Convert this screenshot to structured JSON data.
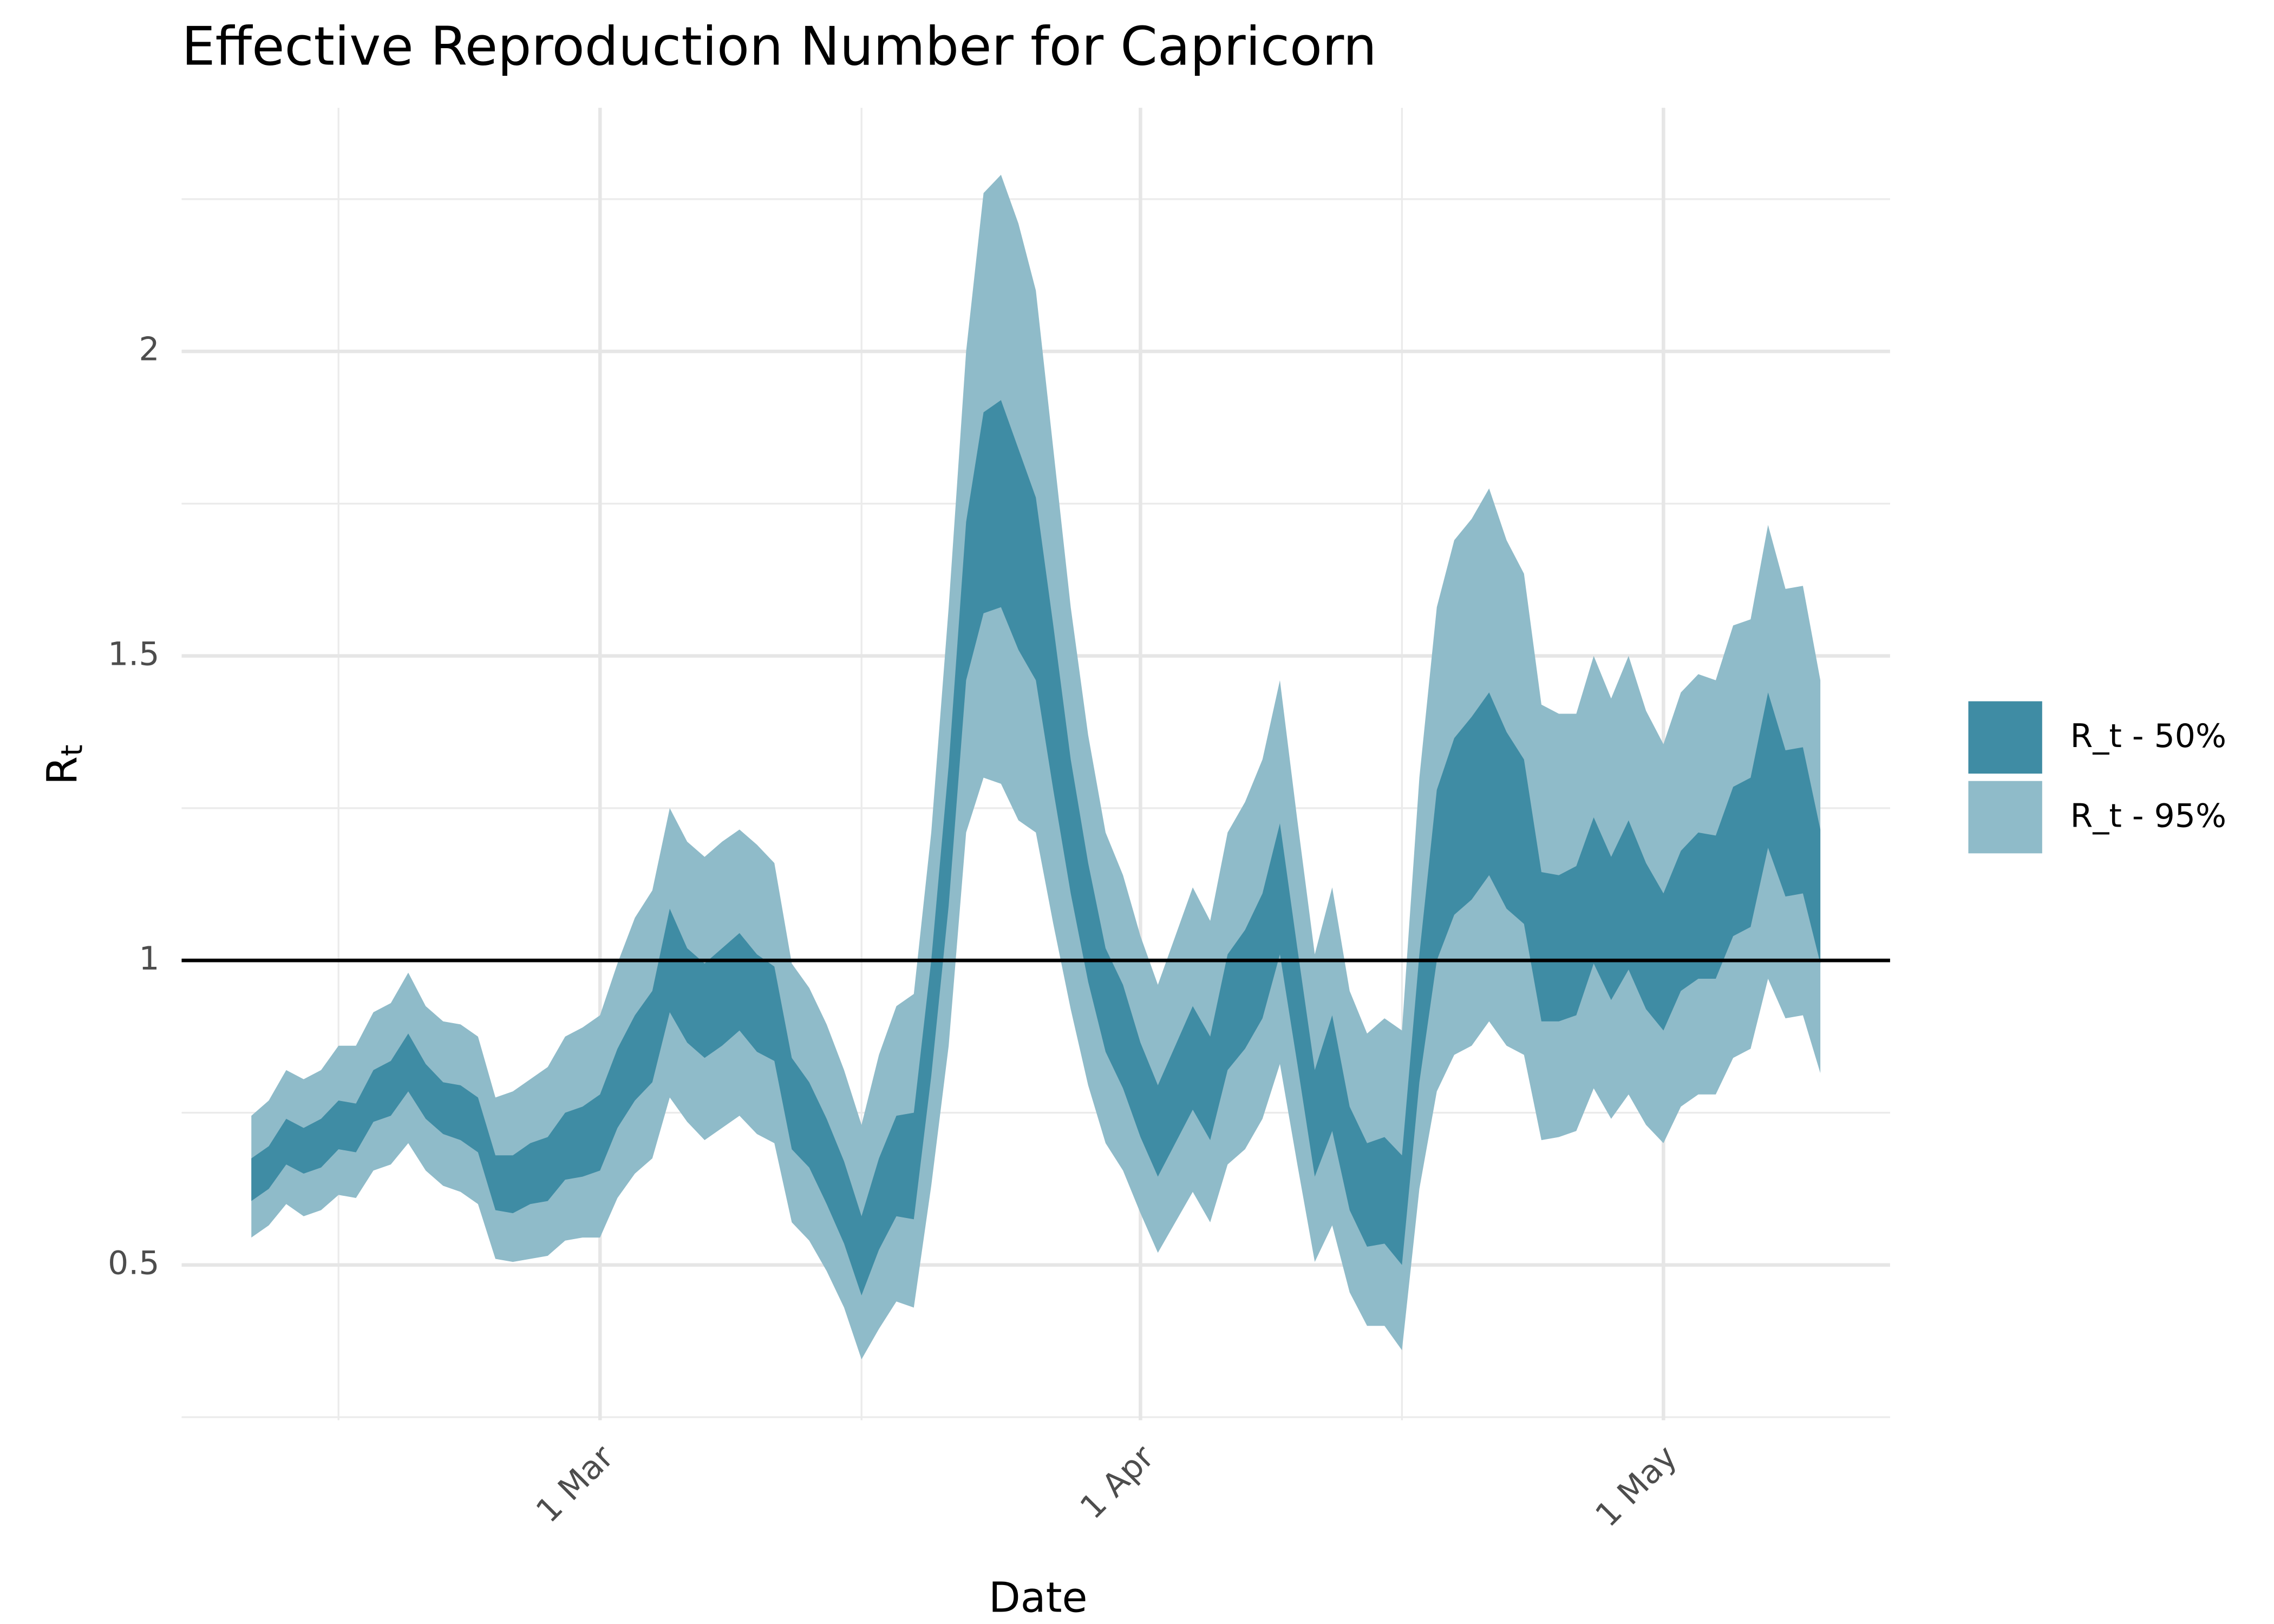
{
  "chart_data": {
    "type": "ribbon",
    "title": "Effective Reproduction Number for Capricorn",
    "xlabel": "Date",
    "ylabel": "R",
    "ylabel_subscript": "t",
    "x": [
      "02-09",
      "02-10",
      "02-11",
      "02-12",
      "02-13",
      "02-14",
      "02-15",
      "02-16",
      "02-17",
      "02-18",
      "02-19",
      "02-20",
      "02-21",
      "02-22",
      "02-23",
      "02-24",
      "02-25",
      "02-26",
      "02-27",
      "02-28",
      "03-01",
      "03-02",
      "03-03",
      "03-04",
      "03-05",
      "03-06",
      "03-07",
      "03-08",
      "03-09",
      "03-10",
      "03-11",
      "03-12",
      "03-13",
      "03-14",
      "03-15",
      "03-16",
      "03-17",
      "03-18",
      "03-19",
      "03-20",
      "03-21",
      "03-22",
      "03-23",
      "03-24",
      "03-25",
      "03-26",
      "03-27",
      "03-28",
      "03-29",
      "03-30",
      "03-31",
      "04-01",
      "04-02",
      "04-03",
      "04-04",
      "04-05",
      "04-06",
      "04-07",
      "04-08",
      "04-09",
      "04-10",
      "04-11",
      "04-12",
      "04-13",
      "04-14",
      "04-15",
      "04-16",
      "04-17",
      "04-18",
      "04-19",
      "04-20",
      "04-21",
      "04-22",
      "04-23",
      "04-24",
      "04-25",
      "04-26",
      "04-27",
      "04-28",
      "04-29",
      "04-30",
      "05-01",
      "05-02",
      "05-03",
      "05-04",
      "05-05",
      "05-06",
      "05-07",
      "05-08",
      "05-09",
      "05-10"
    ],
    "series": [
      {
        "name": "R_t - 50%",
        "color": "#3f8ca4",
        "upper": [
          0.675,
          0.695,
          0.74,
          0.725,
          0.74,
          0.77,
          0.765,
          0.82,
          0.835,
          0.88,
          0.83,
          0.8,
          0.795,
          0.775,
          0.68,
          0.68,
          0.7,
          0.71,
          0.75,
          0.76,
          0.78,
          0.855,
          0.91,
          0.95,
          1.085,
          1.02,
          0.995,
          1.02,
          1.045,
          1.01,
          0.99,
          0.84,
          0.8,
          0.74,
          0.67,
          0.58,
          0.675,
          0.745,
          0.75,
          1.0,
          1.32,
          1.72,
          1.9,
          1.92,
          1.84,
          1.76,
          1.55,
          1.33,
          1.16,
          1.02,
          0.96,
          0.865,
          0.795,
          0.86,
          0.925,
          0.875,
          1.01,
          1.05,
          1.11,
          1.225,
          1.02,
          0.82,
          0.91,
          0.76,
          0.7,
          0.71,
          0.68,
          1.01,
          1.28,
          1.365,
          1.4,
          1.44,
          1.375,
          1.33,
          1.145,
          1.14,
          1.155,
          1.235,
          1.17,
          1.23,
          1.16,
          1.11,
          1.18,
          1.21,
          1.205,
          1.285,
          1.3,
          1.44,
          1.345,
          1.35,
          1.215
        ],
        "lower": [
          0.605,
          0.625,
          0.665,
          0.65,
          0.66,
          0.69,
          0.685,
          0.735,
          0.745,
          0.785,
          0.74,
          0.715,
          0.705,
          0.685,
          0.59,
          0.585,
          0.6,
          0.605,
          0.64,
          0.645,
          0.655,
          0.725,
          0.77,
          0.8,
          0.915,
          0.865,
          0.84,
          0.86,
          0.885,
          0.85,
          0.835,
          0.69,
          0.66,
          0.6,
          0.535,
          0.45,
          0.525,
          0.58,
          0.575,
          0.81,
          1.09,
          1.46,
          1.57,
          1.58,
          1.51,
          1.46,
          1.28,
          1.11,
          0.965,
          0.85,
          0.79,
          0.71,
          0.645,
          0.7,
          0.755,
          0.705,
          0.82,
          0.855,
          0.905,
          1.01,
          0.83,
          0.645,
          0.72,
          0.59,
          0.53,
          0.535,
          0.5,
          0.8,
          1.0,
          1.075,
          1.1,
          1.14,
          1.085,
          1.06,
          0.9,
          0.9,
          0.91,
          0.995,
          0.935,
          0.985,
          0.92,
          0.885,
          0.95,
          0.97,
          0.97,
          1.04,
          1.055,
          1.185,
          1.105,
          1.11,
          0.995
        ]
      },
      {
        "name": "R_t - 95%",
        "color": "#8fbbc9",
        "upper": [
          0.745,
          0.77,
          0.82,
          0.805,
          0.82,
          0.86,
          0.86,
          0.915,
          0.93,
          0.98,
          0.925,
          0.9,
          0.895,
          0.875,
          0.775,
          0.785,
          0.805,
          0.825,
          0.875,
          0.89,
          0.91,
          0.995,
          1.07,
          1.115,
          1.25,
          1.195,
          1.17,
          1.195,
          1.215,
          1.19,
          1.16,
          0.995,
          0.955,
          0.895,
          0.82,
          0.73,
          0.845,
          0.925,
          0.945,
          1.21,
          1.58,
          2.0,
          2.26,
          2.29,
          2.21,
          2.1,
          1.84,
          1.58,
          1.37,
          1.21,
          1.14,
          1.04,
          0.96,
          1.04,
          1.12,
          1.065,
          1.21,
          1.26,
          1.33,
          1.46,
          1.23,
          1.01,
          1.12,
          0.95,
          0.88,
          0.905,
          0.885,
          1.3,
          1.58,
          1.69,
          1.725,
          1.775,
          1.69,
          1.635,
          1.42,
          1.405,
          1.405,
          1.5,
          1.43,
          1.5,
          1.41,
          1.355,
          1.44,
          1.47,
          1.46,
          1.55,
          1.56,
          1.715,
          1.61,
          1.615,
          1.46
        ],
        "lower": [
          0.545,
          0.565,
          0.6,
          0.58,
          0.59,
          0.615,
          0.61,
          0.655,
          0.665,
          0.7,
          0.655,
          0.63,
          0.62,
          0.6,
          0.51,
          0.505,
          0.51,
          0.515,
          0.54,
          0.545,
          0.545,
          0.61,
          0.65,
          0.675,
          0.775,
          0.735,
          0.705,
          0.725,
          0.745,
          0.715,
          0.7,
          0.57,
          0.54,
          0.49,
          0.43,
          0.345,
          0.395,
          0.44,
          0.43,
          0.63,
          0.86,
          1.21,
          1.3,
          1.29,
          1.23,
          1.21,
          1.06,
          0.92,
          0.795,
          0.7,
          0.655,
          0.585,
          0.52,
          0.57,
          0.62,
          0.57,
          0.665,
          0.69,
          0.74,
          0.83,
          0.665,
          0.505,
          0.565,
          0.455,
          0.4,
          0.4,
          0.36,
          0.625,
          0.785,
          0.845,
          0.86,
          0.9,
          0.86,
          0.845,
          0.705,
          0.71,
          0.72,
          0.79,
          0.74,
          0.78,
          0.73,
          0.7,
          0.76,
          0.78,
          0.78,
          0.84,
          0.855,
          0.97,
          0.905,
          0.91,
          0.815
        ]
      }
    ],
    "hline": 1,
    "xlim": [
      "02-05",
      "05-14"
    ],
    "xticks": [
      {
        "value": "03-01",
        "label": "1 Mar"
      },
      {
        "value": "04-01",
        "label": "1 Apr"
      },
      {
        "value": "05-01",
        "label": "1 May"
      }
    ],
    "minor_xticks": [
      "02-14",
      "03-16",
      "04-16"
    ],
    "ylim": [
      0.245,
      2.4
    ],
    "yticks": [
      0.5,
      1.0,
      1.5,
      2.0
    ],
    "minor_yticks": [
      0.25,
      0.75,
      1.25,
      1.75,
      2.25
    ],
    "grid": true,
    "legend": "right"
  }
}
